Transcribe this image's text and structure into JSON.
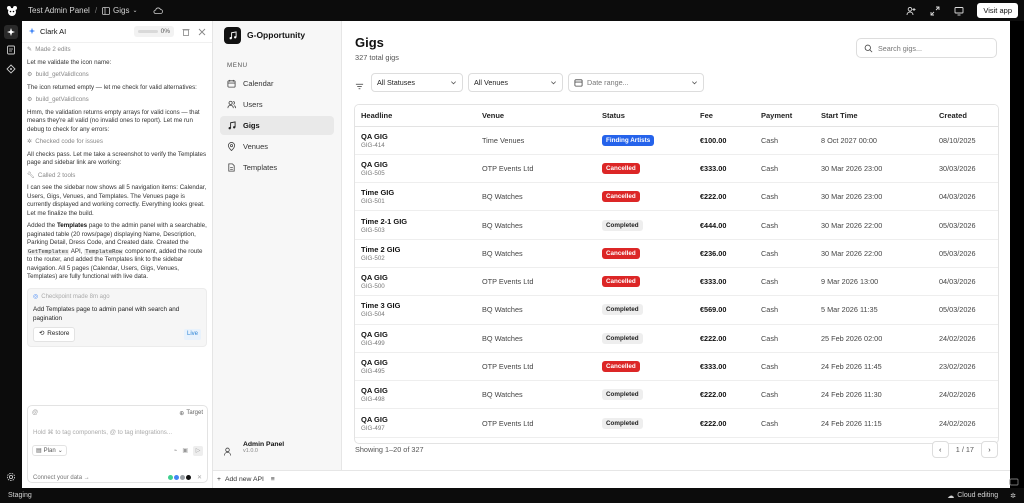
{
  "topbar": {
    "project": "Test Admin Panel",
    "page": "Gigs",
    "visit_label": "Visit app"
  },
  "bottombar": {
    "env": "Staging",
    "cloud": "Cloud editing"
  },
  "chat": {
    "title": "Clark AI",
    "percent": "0%",
    "made_edits": "Made 2 edits",
    "msg1": "Let me validate the icon name:",
    "tool1": "build_getValidIcons",
    "msg2": "The icon returned empty — let me check for valid alternatives:",
    "tool2": "build_getValidIcons",
    "msg3": "Hmm, the validation returns empty arrays for valid icons — that means they're all valid (no invalid ones to report). Let me run debug to check for any errors:",
    "checked": "Checked code for issues",
    "msg4": "All checks pass. Let me take a screenshot to verify the Templates page and sidebar link are working:",
    "called": "Called 2 tools",
    "msg5": "I can see the sidebar now shows all 5 navigation items: Calendar, Users, Gigs, Venues, and Templates. The Venues page is currently displayed and working correctly. Everything looks great. Let me finalize the build.",
    "msg6_a": "Added the ",
    "msg6_b": "Templates",
    "msg6_c": " page to the admin panel with a searchable, paginated table (20 rows/page) displaying Name, Description, Parking Detail, Dress Code, and Created date. Created the ",
    "msg6_code1": "GetTemplates",
    "msg6_d": " API, ",
    "msg6_code2": "TemplateRow",
    "msg6_e": " component, added the route to the router, and added the Templates link to the sidebar navigation. All 5 pages (Calendar, Users, Gigs, Venues, Templates) are fully functional with live data.",
    "checkpoint_label": "Checkpoint made 8m ago",
    "checkpoint_text": "Add Templates page to admin panel with search and pagination",
    "restore_label": "Restore",
    "live_label": "Live",
    "at_label": "@",
    "target_label": "Target",
    "input_placeholder": "Hold ⌘ to tag components, @ to tag integrations...",
    "plan_label": "Plan",
    "connect_label": "Connect your data →"
  },
  "sidebar": {
    "brand": "G-Opportunity",
    "menu_heading": "MENU",
    "items": [
      {
        "label": "Calendar",
        "icon": "calendar-icon"
      },
      {
        "label": "Users",
        "icon": "users-icon"
      },
      {
        "label": "Gigs",
        "icon": "music-icon"
      },
      {
        "label": "Venues",
        "icon": "map-pin-icon"
      },
      {
        "label": "Templates",
        "icon": "file-icon"
      }
    ],
    "admin_name": "Admin Panel",
    "admin_version": "v1.0.0"
  },
  "footer": {
    "add_api": "Add new API"
  },
  "main": {
    "title": "Gigs",
    "subtitle": "327 total gigs",
    "search_placeholder": "Search gigs...",
    "filter_status": "All Statuses",
    "filter_venue": "All Venues",
    "filter_date": "Date range...",
    "columns": [
      "Headline",
      "Venue",
      "Status",
      "Fee",
      "Payment",
      "Start Time",
      "Created"
    ],
    "rows": [
      {
        "headline": "QA GIG",
        "code": "GIG-414",
        "venue": "Time Venues",
        "status": "Finding Artists",
        "fee": "€100.00",
        "payment": "Cash",
        "start": "8 Oct 2027 00:00",
        "created": "08/10/2025"
      },
      {
        "headline": "QA GIG",
        "code": "GIG-505",
        "venue": "OTP Events Ltd",
        "status": "Cancelled",
        "fee": "€333.00",
        "payment": "Cash",
        "start": "30 Mar 2026 23:00",
        "created": "30/03/2026"
      },
      {
        "headline": "Time GIG",
        "code": "GIG-501",
        "venue": "BQ Watches",
        "status": "Cancelled",
        "fee": "€222.00",
        "payment": "Cash",
        "start": "30 Mar 2026 23:00",
        "created": "04/03/2026"
      },
      {
        "headline": "Time 2-1 GIG",
        "code": "GIG-503",
        "venue": "BQ Watches",
        "status": "Completed",
        "fee": "€444.00",
        "payment": "Cash",
        "start": "30 Mar 2026 22:00",
        "created": "05/03/2026"
      },
      {
        "headline": "Time 2 GIG",
        "code": "GIG-502",
        "venue": "BQ Watches",
        "status": "Cancelled",
        "fee": "€236.00",
        "payment": "Cash",
        "start": "30 Mar 2026 22:00",
        "created": "05/03/2026"
      },
      {
        "headline": "QA GIG",
        "code": "GIG-500",
        "venue": "OTP Events Ltd",
        "status": "Cancelled",
        "fee": "€333.00",
        "payment": "Cash",
        "start": "9 Mar 2026 13:00",
        "created": "04/03/2026"
      },
      {
        "headline": "Time 3 GIG",
        "code": "GIG-504",
        "venue": "BQ Watches",
        "status": "Completed",
        "fee": "€569.00",
        "payment": "Cash",
        "start": "5 Mar 2026 11:35",
        "created": "05/03/2026"
      },
      {
        "headline": "QA GIG",
        "code": "GIG-499",
        "venue": "BQ Watches",
        "status": "Completed",
        "fee": "€222.00",
        "payment": "Cash",
        "start": "25 Feb 2026 02:00",
        "created": "24/02/2026"
      },
      {
        "headline": "QA GIG",
        "code": "GIG-495",
        "venue": "OTP Events Ltd",
        "status": "Cancelled",
        "fee": "€333.00",
        "payment": "Cash",
        "start": "24 Feb 2026 11:45",
        "created": "23/02/2026"
      },
      {
        "headline": "QA GIG",
        "code": "GIG-498",
        "venue": "BQ Watches",
        "status": "Completed",
        "fee": "€222.00",
        "payment": "Cash",
        "start": "24 Feb 2026 11:30",
        "created": "24/02/2026"
      },
      {
        "headline": "QA GIG",
        "code": "GIG-497",
        "venue": "OTP Events Ltd",
        "status": "Completed",
        "fee": "€222.00",
        "payment": "Cash",
        "start": "24 Feb 2026 11:15",
        "created": "24/02/2026"
      }
    ],
    "showing": "Showing 1–20 of 327",
    "page_indicator": "1 / 17"
  },
  "colors": {
    "finding": "#2563eb",
    "cancelled": "#dc2626",
    "completed": "#eeeeee"
  }
}
